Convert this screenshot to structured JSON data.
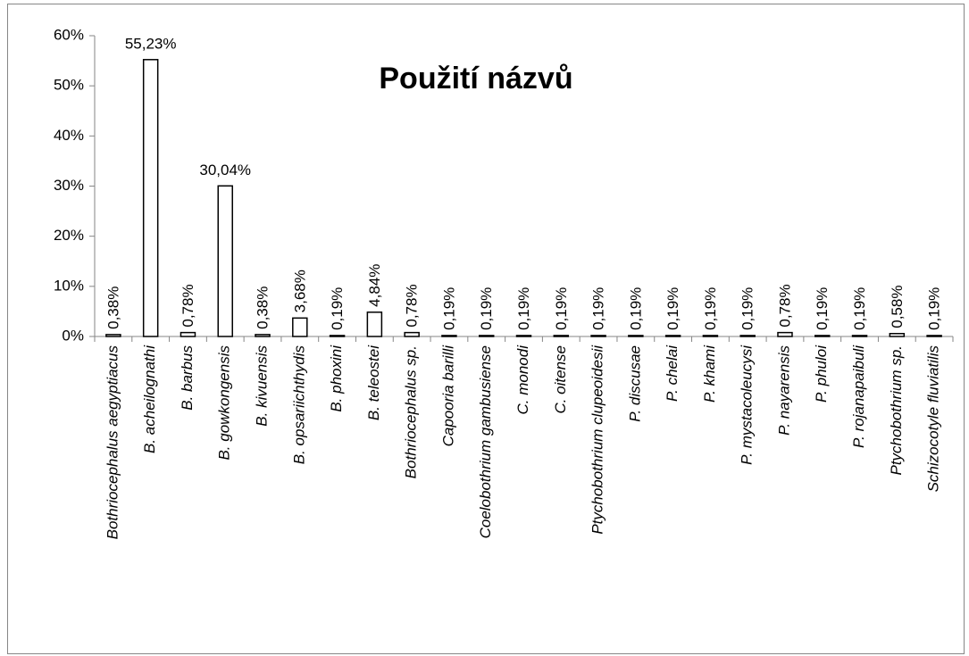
{
  "chart_data": {
    "type": "bar",
    "title": "Použití názvů",
    "categories": [
      "Bothriocephalus aegyptiacus",
      "B. acheilognathi",
      "B. barbus",
      "B. gowkongensis",
      "B. kivuensis",
      "B. opsariichthydis",
      "B. phoxini",
      "B. teleostei",
      "Bothriocephalus sp.",
      "Capooria barilli",
      "Coelobothrium gambusiense",
      "C. monodi",
      "C. oitense",
      "Ptychobothrium clupeoidesii",
      "P. discusae",
      "P. chelai",
      "P. khami",
      "P. mystacoleucysi",
      "P. nayarensis",
      "P. phuloi",
      "P. rojanapaibuli",
      "Ptychobothrium sp.",
      "Schizocotyle fluviatilis"
    ],
    "values": [
      0.38,
      55.23,
      0.78,
      30.04,
      0.38,
      3.68,
      0.19,
      4.84,
      0.78,
      0.19,
      0.19,
      0.19,
      0.19,
      0.19,
      0.19,
      0.19,
      0.19,
      0.19,
      0.78,
      0.19,
      0.19,
      0.58,
      0.19
    ],
    "value_labels": [
      "0,38%",
      "55,23%",
      "0,78%",
      "30,04%",
      "0,38%",
      "3,68%",
      "0,19%",
      "4,84%",
      "0,78%",
      "0,19%",
      "0,19%",
      "0,19%",
      "0,19%",
      "0,19%",
      "0,19%",
      "0,19%",
      "0,19%",
      "0,19%",
      "0,78%",
      "0,19%",
      "0,19%",
      "0,58%",
      "0,19%"
    ],
    "color": "#ffffff",
    "ylim": [
      0,
      60
    ],
    "yticks": [
      {
        "value": 0,
        "label": "0%"
      },
      {
        "value": 10,
        "label": "10%"
      },
      {
        "value": 20,
        "label": "20%"
      },
      {
        "value": 30,
        "label": "30%"
      },
      {
        "value": 40,
        "label": "40%"
      },
      {
        "value": 50,
        "label": "50%"
      },
      {
        "value": 60,
        "label": "60%"
      }
    ],
    "grid": false
  }
}
